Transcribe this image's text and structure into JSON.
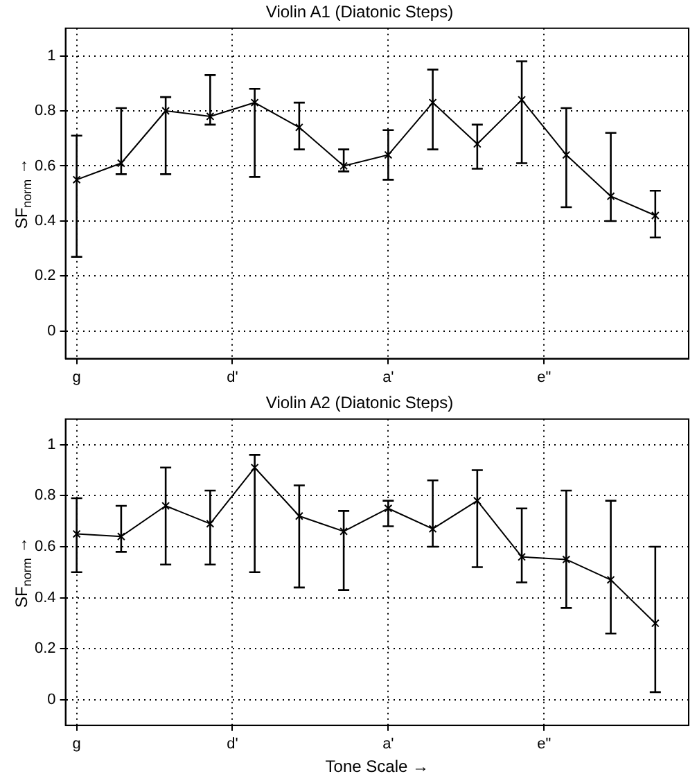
{
  "chart_data": [
    {
      "type": "line",
      "title": "Violin A1 (Diatonic Steps)",
      "ylabel": "SF$_{norm}$ →",
      "categories": [
        "g",
        null,
        null,
        null,
        null,
        null,
        null,
        "d'",
        null,
        null,
        null,
        null,
        null,
        null,
        "a'",
        null,
        null,
        null,
        null,
        null,
        null,
        "e\"",
        null,
        null,
        null,
        null,
        null,
        null
      ],
      "series": [
        {
          "color": "#000000",
          "values": [
            0.55,
            null,
            0.61,
            null,
            0.8,
            null,
            0.78,
            null,
            0.83,
            null,
            0.74,
            null,
            0.6,
            null,
            0.64,
            null,
            0.83,
            null,
            0.68,
            null,
            0.84,
            null,
            0.64,
            null,
            0.49,
            null,
            0.42,
            null
          ],
          "errors": [
            [
              0.27,
              0.71
            ],
            null,
            [
              0.57,
              0.81
            ],
            null,
            [
              0.57,
              0.85
            ],
            null,
            [
              0.75,
              0.93
            ],
            null,
            [
              0.56,
              0.88
            ],
            null,
            [
              0.66,
              0.83
            ],
            null,
            [
              0.58,
              0.66
            ],
            null,
            [
              0.55,
              0.73
            ],
            null,
            [
              0.66,
              0.95
            ],
            null,
            [
              0.59,
              0.75
            ],
            null,
            [
              0.61,
              0.98
            ],
            null,
            [
              0.45,
              0.81
            ],
            null,
            [
              0.4,
              0.72
            ],
            null,
            [
              0.34,
              0.51
            ],
            null
          ]
        }
      ],
      "ylim": [
        -0.1,
        1.1
      ],
      "yticks": [
        0,
        0.2,
        0.4,
        0.6,
        0.8,
        1
      ],
      "grid": true,
      "marker": "cross",
      "line_style": "solid"
    },
    {
      "type": "line",
      "title": "Violin A2 (Diatonic Steps)",
      "xlabel": "Tone Scale →",
      "ylabel": "SF$_{norm}$ →",
      "categories": [
        "g",
        null,
        null,
        null,
        null,
        null,
        null,
        "d'",
        null,
        null,
        null,
        null,
        null,
        null,
        "a'",
        null,
        null,
        null,
        null,
        null,
        null,
        "e\"",
        null,
        null,
        null,
        null,
        null,
        null
      ],
      "series": [
        {
          "color": "#000000",
          "values": [
            0.65,
            null,
            0.64,
            null,
            0.76,
            null,
            0.69,
            null,
            0.91,
            null,
            0.72,
            null,
            0.66,
            null,
            0.75,
            null,
            0.67,
            null,
            0.78,
            null,
            0.56,
            null,
            0.55,
            null,
            0.47,
            null,
            0.3,
            null
          ],
          "errors": [
            [
              0.5,
              0.79
            ],
            null,
            [
              0.58,
              0.76
            ],
            null,
            [
              0.53,
              0.91
            ],
            null,
            [
              0.53,
              0.82
            ],
            null,
            [
              0.5,
              0.96
            ],
            null,
            [
              0.44,
              0.84
            ],
            null,
            [
              0.43,
              0.74
            ],
            null,
            [
              0.68,
              0.78
            ],
            null,
            [
              0.6,
              0.86
            ],
            null,
            [
              0.52,
              0.9
            ],
            null,
            [
              0.46,
              0.75
            ],
            null,
            [
              0.36,
              0.82
            ],
            null,
            [
              0.26,
              0.78
            ],
            null,
            [
              0.03,
              0.6
            ],
            null
          ]
        }
      ],
      "ylim": [
        -0.1,
        1.1
      ],
      "yticks": [
        0,
        0.2,
        0.4,
        0.6,
        0.8,
        1
      ],
      "grid": true,
      "marker": "cross",
      "line_style": "solid"
    }
  ]
}
